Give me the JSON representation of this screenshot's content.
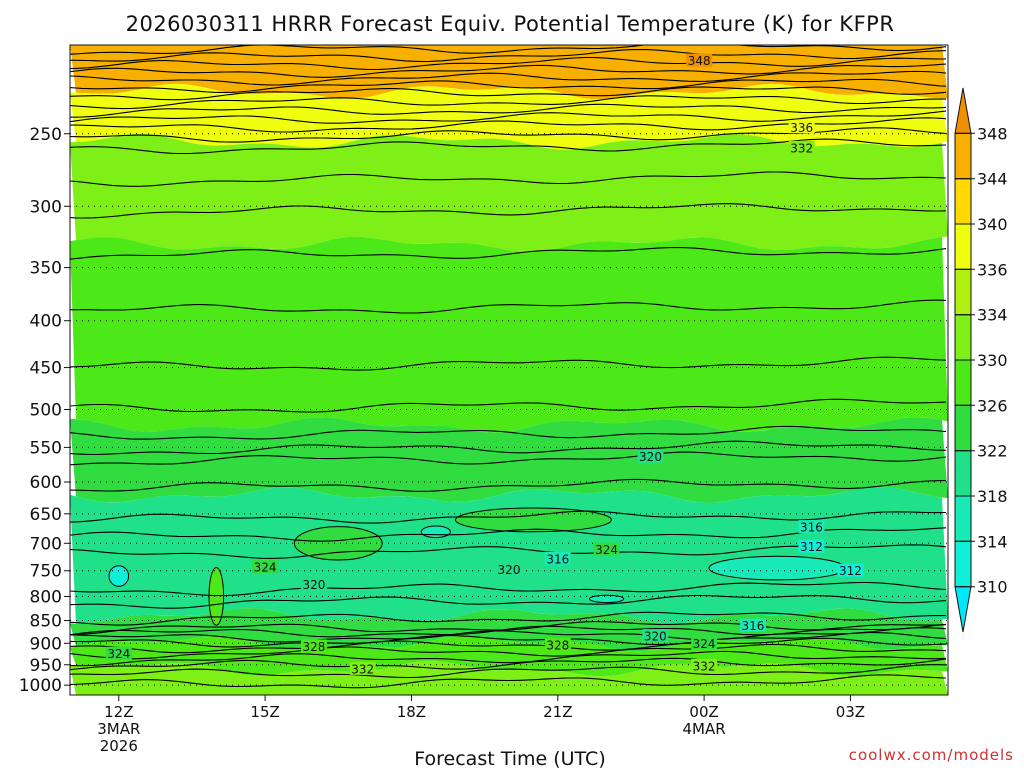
{
  "chart_data": {
    "type": "heatmap",
    "title": "2026030311 HRRR Forecast Equiv. Potential Temperature (K) for KFPR",
    "xlabel": "Forecast Time (UTC)",
    "ylabel": "",
    "x_ticks": [
      {
        "hour": 12,
        "lines": [
          "12Z",
          "3MAR",
          "2026"
        ]
      },
      {
        "hour": 15,
        "lines": [
          "15Z"
        ]
      },
      {
        "hour": 18,
        "lines": [
          "18Z"
        ]
      },
      {
        "hour": 21,
        "lines": [
          "21Z"
        ]
      },
      {
        "hour": 24,
        "lines": [
          "00Z",
          "4MAR"
        ]
      },
      {
        "hour": 27,
        "lines": [
          "03Z"
        ]
      }
    ],
    "xlim": [
      11,
      29
    ],
    "ylim": [
      1025,
      200
    ],
    "y_scale": "log",
    "y_ticks": [
      250,
      300,
      350,
      400,
      450,
      500,
      550,
      600,
      650,
      700,
      750,
      800,
      850,
      900,
      950,
      1000
    ],
    "grid": "dotted",
    "colorbar": {
      "ticks": [
        310,
        314,
        318,
        322,
        326,
        330,
        334,
        336,
        340,
        344,
        348
      ],
      "colors": [
        "#00e8f8",
        "#10f0d8",
        "#18eab8",
        "#20e08a",
        "#30dc40",
        "#4ce818",
        "#7ef018",
        "#b0f010",
        "#f0ff10",
        "#ffd800",
        "#f8b000",
        "#f09000"
      ]
    },
    "contour_labels": [
      {
        "hour": 23.9,
        "p": 208,
        "value": "348"
      },
      {
        "hour": 26.0,
        "p": 246,
        "value": "336"
      },
      {
        "hour": 26.0,
        "p": 259,
        "value": "332"
      },
      {
        "hour": 22.9,
        "p": 563,
        "value": "320"
      },
      {
        "hour": 26.2,
        "p": 672,
        "value": "316"
      },
      {
        "hour": 26.2,
        "p": 706,
        "value": "312"
      },
      {
        "hour": 22.0,
        "p": 711,
        "value": "324"
      },
      {
        "hour": 21.0,
        "p": 728,
        "value": "316"
      },
      {
        "hour": 20.0,
        "p": 748,
        "value": "320"
      },
      {
        "hour": 27.0,
        "p": 750,
        "value": "312"
      },
      {
        "hour": 15.0,
        "p": 743,
        "value": "324"
      },
      {
        "hour": 16.0,
        "p": 776,
        "value": "320"
      },
      {
        "hour": 25.0,
        "p": 861,
        "value": "316"
      },
      {
        "hour": 23.0,
        "p": 884,
        "value": "320"
      },
      {
        "hour": 24.0,
        "p": 901,
        "value": "324"
      },
      {
        "hour": 21.0,
        "p": 904,
        "value": "328"
      },
      {
        "hour": 16.0,
        "p": 907,
        "value": "328"
      },
      {
        "hour": 12.0,
        "p": 924,
        "value": "324"
      },
      {
        "hour": 17.0,
        "p": 960,
        "value": "332"
      },
      {
        "hour": 24.0,
        "p": 953,
        "value": "332"
      }
    ],
    "regions": [
      {
        "p_top": 200,
        "p_bot": 225,
        "value": 346
      },
      {
        "p_top": 225,
        "p_bot": 255,
        "value": 338
      },
      {
        "p_top": 255,
        "p_bot": 330,
        "value": 333
      },
      {
        "p_top": 330,
        "p_bot": 520,
        "value": 328
      },
      {
        "p_top": 520,
        "p_bot": 620,
        "value": 322
      },
      {
        "p_top": 620,
        "p_bot": 840,
        "value": 318
      },
      {
        "p_top": 840,
        "p_bot": 900,
        "value": 322
      },
      {
        "p_top": 900,
        "p_bot": 960,
        "value": 328
      },
      {
        "p_top": 960,
        "p_bot": 1025,
        "value": 332
      }
    ],
    "pockets": [
      {
        "hour": 20.5,
        "p": 660,
        "dh": 3.2,
        "dp": 40,
        "value": 324
      },
      {
        "hour": 16.5,
        "p": 700,
        "dh": 1.8,
        "dp": 60,
        "value": 322
      },
      {
        "hour": 25.5,
        "p": 745,
        "dh": 2.8,
        "dp": 45,
        "value": 314
      },
      {
        "hour": 12.0,
        "p": 760,
        "dh": 0.4,
        "dp": 40,
        "value": 312
      },
      {
        "hour": 18.5,
        "p": 680,
        "dh": 0.6,
        "dp": 20,
        "value": 314
      },
      {
        "hour": 22.0,
        "p": 805,
        "dh": 0.7,
        "dp": 15,
        "value": 316
      },
      {
        "hour": 14.0,
        "p": 800,
        "dh": 0.3,
        "dp": 120,
        "value": 326
      }
    ],
    "contour_levels": [
      {
        "value": 350,
        "p": 203
      },
      {
        "value": 349,
        "p": 207
      },
      {
        "value": 348,
        "p": 211
      },
      {
        "value": 347,
        "p": 215
      },
      {
        "value": 346,
        "p": 219
      },
      {
        "value": 345,
        "p": 223
      },
      {
        "value": 344,
        "p": 227
      },
      {
        "value": 342,
        "p": 232
      },
      {
        "value": 340,
        "p": 237
      },
      {
        "value": 338,
        "p": 242
      },
      {
        "value": 336,
        "p": 247
      },
      {
        "value": 334,
        "p": 253
      },
      {
        "value": 332,
        "p": 260
      },
      {
        "value": 331,
        "p": 282
      },
      {
        "value": 330,
        "p": 305
      },
      {
        "value": 329,
        "p": 340
      },
      {
        "value": 328,
        "p": 390
      },
      {
        "value": 327,
        "p": 450
      },
      {
        "value": 326,
        "p": 500
      },
      {
        "value": 324,
        "p": 535
      },
      {
        "value": 322,
        "p": 555
      },
      {
        "value": 320,
        "p": 570
      },
      {
        "value": 318,
        "p": 610
      },
      {
        "value": 316,
        "p": 660
      },
      {
        "value": 314,
        "p": 690
      },
      {
        "value": 312,
        "p": 720
      },
      {
        "value": 312,
        "p": 790
      },
      {
        "value": 314,
        "p": 815
      },
      {
        "value": 316,
        "p": 850
      },
      {
        "value": 318,
        "p": 870
      },
      {
        "value": 320,
        "p": 880
      },
      {
        "value": 322,
        "p": 890
      },
      {
        "value": 324,
        "p": 900
      },
      {
        "value": 326,
        "p": 912
      },
      {
        "value": 328,
        "p": 925
      },
      {
        "value": 329,
        "p": 940
      },
      {
        "value": 330,
        "p": 955
      },
      {
        "value": 332,
        "p": 975
      },
      {
        "value": 334,
        "p": 1000
      }
    ],
    "ground_color": "#a0522d"
  },
  "credit": "coolwx.com/models"
}
